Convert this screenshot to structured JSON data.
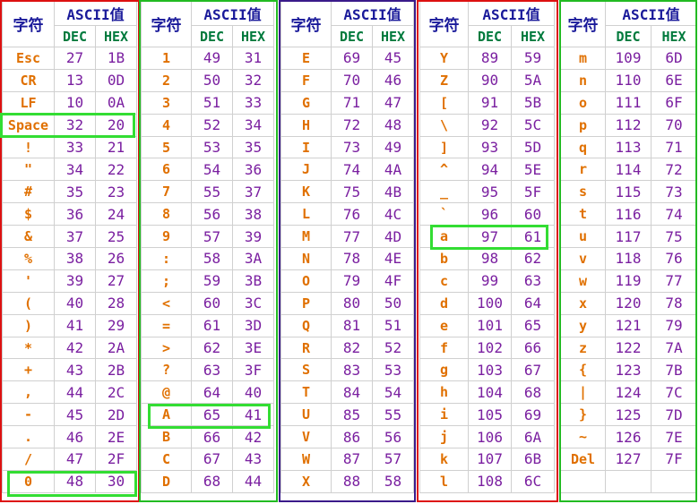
{
  "header": {
    "char_label": "字符",
    "ascii_label": "ASCII值",
    "dec_label": "DEC",
    "hex_label": "HEX"
  },
  "colors": {
    "header_text": "#1a1a9a",
    "subheader_text": "#007a3d",
    "char_text": "#e07000",
    "value_text": "#7a1fa0",
    "frame_red": "#dd1111",
    "frame_green": "#22bb22",
    "frame_purple": "#3a1a8a",
    "highlight_green": "#33dd33"
  },
  "blocks": [
    {
      "rows": [
        {
          "char": "Esc",
          "dec": "27",
          "hex": "1B"
        },
        {
          "char": "CR",
          "dec": "13",
          "hex": "0D"
        },
        {
          "char": "LF",
          "dec": "10",
          "hex": "0A"
        },
        {
          "char": "Space",
          "dec": "32",
          "hex": "20"
        },
        {
          "char": "!",
          "dec": "33",
          "hex": "21"
        },
        {
          "char": "\"",
          "dec": "34",
          "hex": "22"
        },
        {
          "char": "#",
          "dec": "35",
          "hex": "23"
        },
        {
          "char": "$",
          "dec": "36",
          "hex": "24"
        },
        {
          "char": "&",
          "dec": "37",
          "hex": "25"
        },
        {
          "char": "%",
          "dec": "38",
          "hex": "26"
        },
        {
          "char": "'",
          "dec": "39",
          "hex": "27"
        },
        {
          "char": "(",
          "dec": "40",
          "hex": "28"
        },
        {
          "char": ")",
          "dec": "41",
          "hex": "29"
        },
        {
          "char": "*",
          "dec": "42",
          "hex": "2A"
        },
        {
          "char": "+",
          "dec": "43",
          "hex": "2B"
        },
        {
          "char": ",",
          "dec": "44",
          "hex": "2C"
        },
        {
          "char": "-",
          "dec": "45",
          "hex": "2D"
        },
        {
          "char": ".",
          "dec": "46",
          "hex": "2E"
        },
        {
          "char": "/",
          "dec": "47",
          "hex": "2F"
        },
        {
          "char": "0",
          "dec": "48",
          "hex": "30"
        }
      ]
    },
    {
      "rows": [
        {
          "char": "1",
          "dec": "49",
          "hex": "31"
        },
        {
          "char": "2",
          "dec": "50",
          "hex": "32"
        },
        {
          "char": "3",
          "dec": "51",
          "hex": "33"
        },
        {
          "char": "4",
          "dec": "52",
          "hex": "34"
        },
        {
          "char": "5",
          "dec": "53",
          "hex": "35"
        },
        {
          "char": "6",
          "dec": "54",
          "hex": "36"
        },
        {
          "char": "7",
          "dec": "55",
          "hex": "37"
        },
        {
          "char": "8",
          "dec": "56",
          "hex": "38"
        },
        {
          "char": "9",
          "dec": "57",
          "hex": "39"
        },
        {
          "char": ":",
          "dec": "58",
          "hex": "3A"
        },
        {
          "char": ";",
          "dec": "59",
          "hex": "3B"
        },
        {
          "char": "<",
          "dec": "60",
          "hex": "3C"
        },
        {
          "char": "=",
          "dec": "61",
          "hex": "3D"
        },
        {
          "char": ">",
          "dec": "62",
          "hex": "3E"
        },
        {
          "char": "?",
          "dec": "63",
          "hex": "3F"
        },
        {
          "char": "@",
          "dec": "64",
          "hex": "40"
        },
        {
          "char": "A",
          "dec": "65",
          "hex": "41"
        },
        {
          "char": "B",
          "dec": "66",
          "hex": "42"
        },
        {
          "char": "C",
          "dec": "67",
          "hex": "43"
        },
        {
          "char": "D",
          "dec": "68",
          "hex": "44"
        }
      ]
    },
    {
      "rows": [
        {
          "char": "E",
          "dec": "69",
          "hex": "45"
        },
        {
          "char": "F",
          "dec": "70",
          "hex": "46"
        },
        {
          "char": "G",
          "dec": "71",
          "hex": "47"
        },
        {
          "char": "H",
          "dec": "72",
          "hex": "48"
        },
        {
          "char": "I",
          "dec": "73",
          "hex": "49"
        },
        {
          "char": "J",
          "dec": "74",
          "hex": "4A"
        },
        {
          "char": "K",
          "dec": "75",
          "hex": "4B"
        },
        {
          "char": "L",
          "dec": "76",
          "hex": "4C"
        },
        {
          "char": "M",
          "dec": "77",
          "hex": "4D"
        },
        {
          "char": "N",
          "dec": "78",
          "hex": "4E"
        },
        {
          "char": "O",
          "dec": "79",
          "hex": "4F"
        },
        {
          "char": "P",
          "dec": "80",
          "hex": "50"
        },
        {
          "char": "Q",
          "dec": "81",
          "hex": "51"
        },
        {
          "char": "R",
          "dec": "82",
          "hex": "52"
        },
        {
          "char": "S",
          "dec": "83",
          "hex": "53"
        },
        {
          "char": "T",
          "dec": "84",
          "hex": "54"
        },
        {
          "char": "U",
          "dec": "85",
          "hex": "55"
        },
        {
          "char": "V",
          "dec": "86",
          "hex": "56"
        },
        {
          "char": "W",
          "dec": "87",
          "hex": "57"
        },
        {
          "char": "X",
          "dec": "88",
          "hex": "58"
        }
      ]
    },
    {
      "rows": [
        {
          "char": "Y",
          "dec": "89",
          "hex": "59"
        },
        {
          "char": "Z",
          "dec": "90",
          "hex": "5A"
        },
        {
          "char": "[",
          "dec": "91",
          "hex": "5B"
        },
        {
          "char": "\\",
          "dec": "92",
          "hex": "5C"
        },
        {
          "char": "]",
          "dec": "93",
          "hex": "5D"
        },
        {
          "char": "^",
          "dec": "94",
          "hex": "5E"
        },
        {
          "char": "_",
          "dec": "95",
          "hex": "5F"
        },
        {
          "char": "`",
          "dec": "96",
          "hex": "60"
        },
        {
          "char": "a",
          "dec": "97",
          "hex": "61"
        },
        {
          "char": "b",
          "dec": "98",
          "hex": "62"
        },
        {
          "char": "c",
          "dec": "99",
          "hex": "63"
        },
        {
          "char": "d",
          "dec": "100",
          "hex": "64"
        },
        {
          "char": "e",
          "dec": "101",
          "hex": "65"
        },
        {
          "char": "f",
          "dec": "102",
          "hex": "66"
        },
        {
          "char": "g",
          "dec": "103",
          "hex": "67"
        },
        {
          "char": "h",
          "dec": "104",
          "hex": "68"
        },
        {
          "char": "i",
          "dec": "105",
          "hex": "69"
        },
        {
          "char": "j",
          "dec": "106",
          "hex": "6A"
        },
        {
          "char": "k",
          "dec": "107",
          "hex": "6B"
        },
        {
          "char": "l",
          "dec": "108",
          "hex": "6C"
        }
      ]
    },
    {
      "rows": [
        {
          "char": "m",
          "dec": "109",
          "hex": "6D"
        },
        {
          "char": "n",
          "dec": "110",
          "hex": "6E"
        },
        {
          "char": "o",
          "dec": "111",
          "hex": "6F"
        },
        {
          "char": "p",
          "dec": "112",
          "hex": "70"
        },
        {
          "char": "q",
          "dec": "113",
          "hex": "71"
        },
        {
          "char": "r",
          "dec": "114",
          "hex": "72"
        },
        {
          "char": "s",
          "dec": "115",
          "hex": "73"
        },
        {
          "char": "t",
          "dec": "116",
          "hex": "74"
        },
        {
          "char": "u",
          "dec": "117",
          "hex": "75"
        },
        {
          "char": "v",
          "dec": "118",
          "hex": "76"
        },
        {
          "char": "w",
          "dec": "119",
          "hex": "77"
        },
        {
          "char": "x",
          "dec": "120",
          "hex": "78"
        },
        {
          "char": "y",
          "dec": "121",
          "hex": "79"
        },
        {
          "char": "z",
          "dec": "122",
          "hex": "7A"
        },
        {
          "char": "{",
          "dec": "123",
          "hex": "7B"
        },
        {
          "char": "|",
          "dec": "124",
          "hex": "7C"
        },
        {
          "char": "}",
          "dec": "125",
          "hex": "7D"
        },
        {
          "char": "~",
          "dec": "126",
          "hex": "7E"
        },
        {
          "char": "Del",
          "dec": "127",
          "hex": "7F"
        },
        {
          "char": "",
          "dec": "",
          "hex": ""
        }
      ]
    }
  ]
}
